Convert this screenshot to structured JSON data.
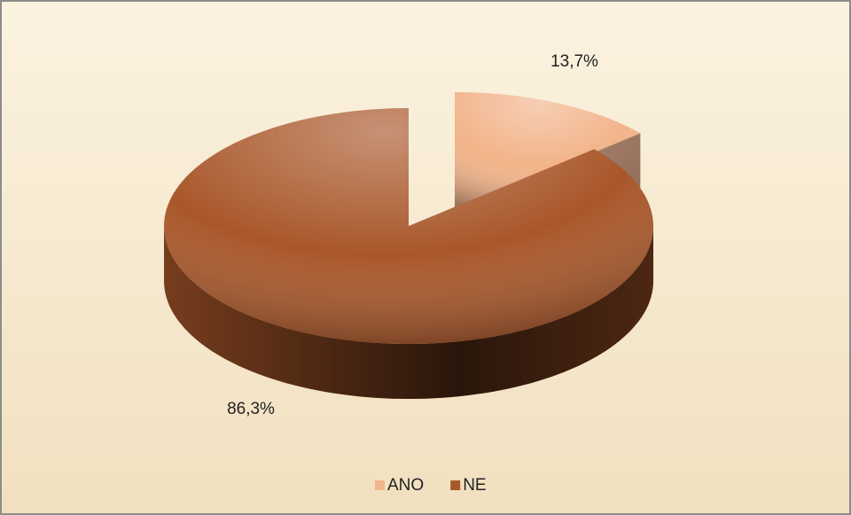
{
  "chart_data": {
    "type": "pie3d",
    "categories": [
      "ANO",
      "NE"
    ],
    "values": [
      13.7,
      86.3
    ],
    "value_labels": [
      "13,7%",
      "86,3%"
    ],
    "colors": [
      "#f2b48a",
      "#a9572a"
    ],
    "legend": "bottom"
  }
}
